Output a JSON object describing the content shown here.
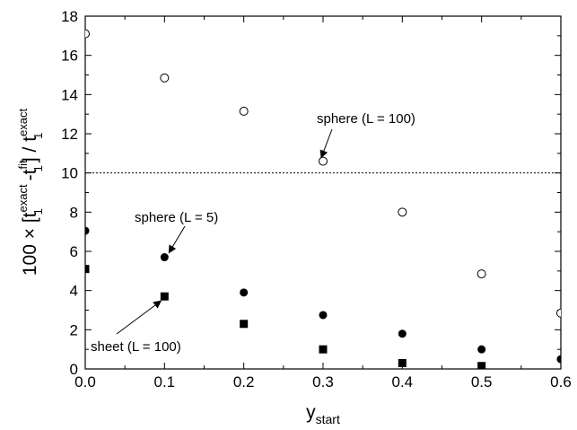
{
  "chart_data": {
    "type": "scatter",
    "title": "",
    "xlabel": "y",
    "xlabel_sub": "start",
    "ylabel_parts": {
      "prefix": "100 × [t",
      "sup1": "exact",
      "sub1": "1",
      "mid": " -t",
      "sup2": "fit",
      "sub2": "1",
      "close": "] / t",
      "sup3": "exact",
      "sub3": "1"
    },
    "xlim": [
      0.0,
      0.6
    ],
    "ylim": [
      0,
      18
    ],
    "xticks": [
      "0.0",
      "0.1",
      "0.2",
      "0.3",
      "0.4",
      "0.5",
      "0.6"
    ],
    "yticks": [
      "0",
      "2",
      "4",
      "6",
      "8",
      "10",
      "12",
      "14",
      "16",
      "18"
    ],
    "grid": false,
    "legend": "none",
    "reference_line": {
      "y": 10,
      "style": "dotted"
    },
    "series": [
      {
        "marker": "open-circle",
        "x": [
          0.0,
          0.1,
          0.2,
          0.3,
          0.4,
          0.5,
          0.6
        ],
        "y": [
          17.1,
          14.85,
          13.15,
          10.6,
          8.0,
          4.85,
          2.85
        ]
      },
      {
        "marker": "filled-circle",
        "x": [
          0.0,
          0.1,
          0.2,
          0.3,
          0.4,
          0.5,
          0.6
        ],
        "y": [
          7.05,
          5.7,
          3.9,
          2.75,
          1.8,
          1.0,
          0.5
        ]
      },
      {
        "marker": "filled-square",
        "x": [
          0.0,
          0.1,
          0.2,
          0.3,
          0.4,
          0.5
        ],
        "y": [
          5.1,
          3.7,
          2.3,
          1.0,
          0.3,
          0.15
        ]
      }
    ],
    "annotations": [
      {
        "text": "sphere (L = 100)",
        "point": [
          0.3,
          10.6
        ]
      },
      {
        "text": "sphere (L = 5)",
        "point": [
          0.1,
          5.7
        ]
      },
      {
        "text": "sheet (L = 100)",
        "point": [
          0.1,
          3.7
        ]
      }
    ]
  }
}
